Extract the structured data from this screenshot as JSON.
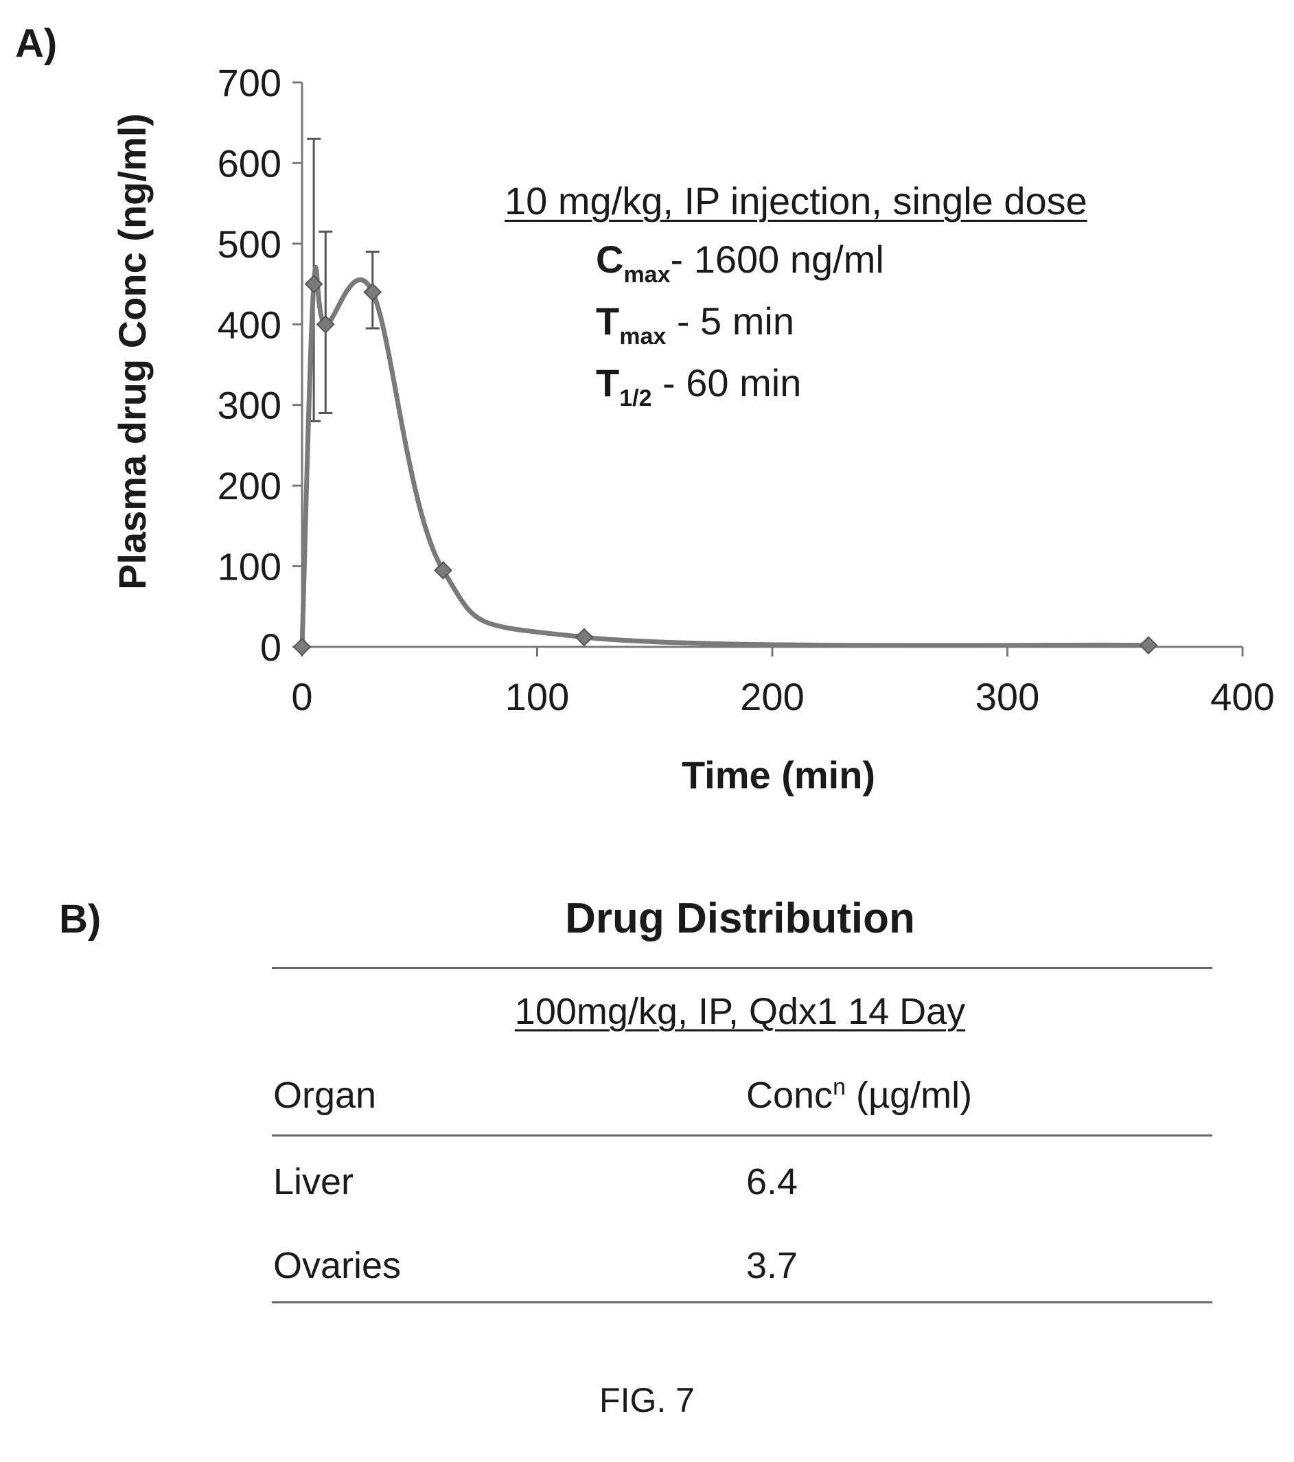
{
  "panel_a_label": "A)",
  "panel_b_label": "B)",
  "chart_data": {
    "type": "line",
    "xlabel": "Time (min)",
    "ylabel": "Plasma drug Conc (ng/ml)",
    "xlim": [
      0,
      400
    ],
    "ylim": [
      0,
      700
    ],
    "x_ticks": [
      0,
      100,
      200,
      300,
      400
    ],
    "y_ticks": [
      0,
      100,
      200,
      300,
      400,
      500,
      600,
      700
    ],
    "grid": false,
    "x": [
      0,
      5,
      10,
      30,
      60,
      120,
      360
    ],
    "values": [
      0,
      450,
      400,
      440,
      95,
      12,
      2
    ],
    "error_high": [
      0,
      630,
      515,
      490,
      0,
      0,
      0
    ],
    "error_low": [
      0,
      280,
      290,
      395,
      0,
      0,
      0
    ],
    "color": "#7a7a7a"
  },
  "annotation": {
    "title": "10 mg/kg, IP injection, single dose",
    "cmax_main": "C",
    "cmax_sub": "max",
    "cmax_value": "- 1600 ng/ml",
    "tmax_main": "T",
    "tmax_sub": "max",
    "tmax_value": " - 5 min",
    "thalf_main": "T",
    "thalf_sub": "1/2",
    "thalf_value": " - 60 min"
  },
  "table": {
    "title": "Drug Distribution",
    "subtitle": "100mg/kg, IP, Qdx1 14 Day",
    "col_organ": "Organ",
    "col_conc_main": "Conc",
    "col_conc_sup": "n",
    "col_conc_unit": " (µg/ml)",
    "rows": [
      {
        "organ": "Liver",
        "conc": "6.4"
      },
      {
        "organ": "Ovaries",
        "conc": "3.7"
      }
    ]
  },
  "figure_label": "FIG. 7"
}
